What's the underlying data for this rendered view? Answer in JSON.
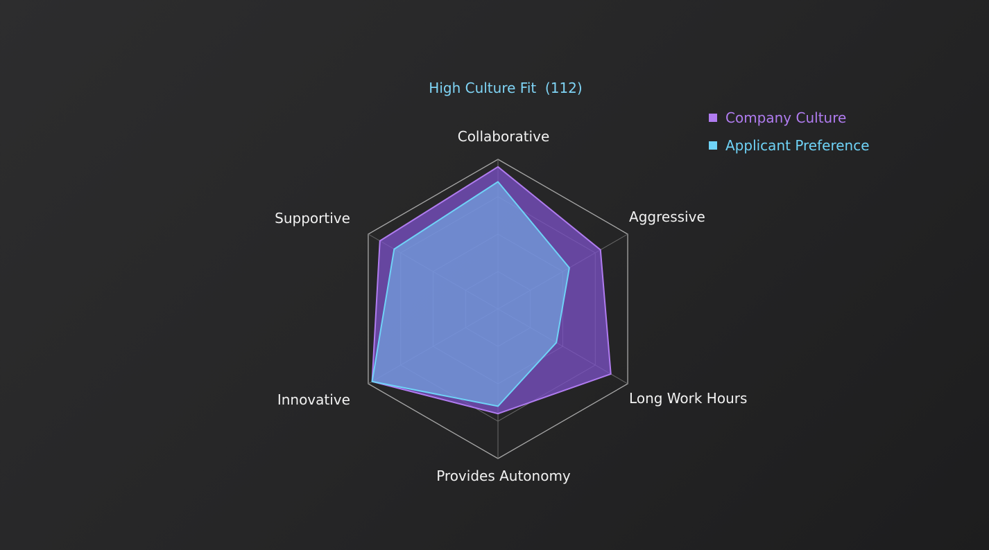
{
  "chart_data": {
    "type": "radar",
    "title": "High Culture Fit  (112)",
    "axes": [
      "Collaborative",
      "Aggressive",
      "Long Work Hours",
      "Provides Autonomy",
      "Innovative",
      "Supportive"
    ],
    "range": [
      0,
      100
    ],
    "grid_levels": 4,
    "series": [
      {
        "name": "Company Culture",
        "color": "#b07cf0",
        "values": [
          95,
          79,
          87,
          70,
          97,
          91
        ]
      },
      {
        "name": "Applicant Preference",
        "color": "#6fd3f7",
        "values": [
          85,
          55,
          45,
          65,
          97,
          80
        ]
      }
    ],
    "legend_position": "top-right"
  }
}
